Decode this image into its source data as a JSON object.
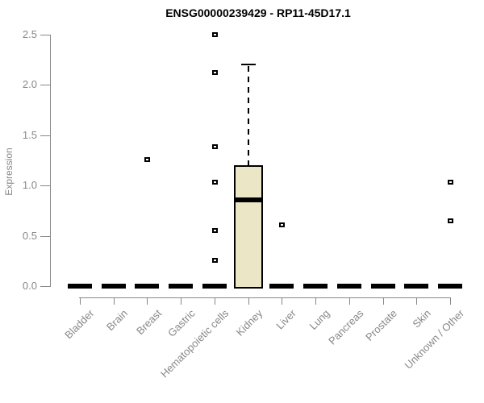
{
  "chart_data": {
    "type": "box",
    "title": "ENSG00000239429 - RP11-45D17.1",
    "ylabel": "Expression",
    "xlabel": "",
    "ylim": [
      0,
      2.5
    ],
    "yticks": [
      "0.0",
      "0.5",
      "1.0",
      "1.5",
      "2.0",
      "2.5"
    ],
    "grid": false,
    "legend": false,
    "categories": [
      "Bladder",
      "Brain",
      "Breast",
      "Gastric",
      "Hematopoietic cells",
      "Kidney",
      "Liver",
      "Lung",
      "Pancreas",
      "Prostate",
      "Skin",
      "Unknown / Other"
    ],
    "series": [
      {
        "category": "Bladder",
        "whisker_low": 0,
        "q1": 0,
        "median": 0,
        "q3": 0,
        "whisker_high": 0,
        "outliers": []
      },
      {
        "category": "Brain",
        "whisker_low": 0,
        "q1": 0,
        "median": 0,
        "q3": 0,
        "whisker_high": 0,
        "outliers": []
      },
      {
        "category": "Breast",
        "whisker_low": 0,
        "q1": 0,
        "median": 0,
        "q3": 0,
        "whisker_high": 0,
        "outliers": [
          1.26
        ]
      },
      {
        "category": "Gastric",
        "whisker_low": 0,
        "q1": 0,
        "median": 0,
        "q3": 0,
        "whisker_high": 0,
        "outliers": []
      },
      {
        "category": "Hematopoietic cells",
        "whisker_low": 0,
        "q1": 0,
        "median": 0,
        "q3": 0,
        "whisker_high": 0,
        "outliers": [
          2.5,
          2.12,
          1.39,
          1.03,
          0.55,
          0.26
        ]
      },
      {
        "category": "Kidney",
        "whisker_low": 0,
        "q1": 0,
        "median": 0.86,
        "q3": 1.2,
        "whisker_high": 2.2,
        "outliers": []
      },
      {
        "category": "Liver",
        "whisker_low": 0,
        "q1": 0,
        "median": 0,
        "q3": 0,
        "whisker_high": 0,
        "outliers": [
          0.61
        ]
      },
      {
        "category": "Lung",
        "whisker_low": 0,
        "q1": 0,
        "median": 0,
        "q3": 0,
        "whisker_high": 0,
        "outliers": []
      },
      {
        "category": "Pancreas",
        "whisker_low": 0,
        "q1": 0,
        "median": 0,
        "q3": 0,
        "whisker_high": 0,
        "outliers": []
      },
      {
        "category": "Prostate",
        "whisker_low": 0,
        "q1": 0,
        "median": 0,
        "q3": 0,
        "whisker_high": 0,
        "outliers": []
      },
      {
        "category": "Skin",
        "whisker_low": 0,
        "q1": 0,
        "median": 0,
        "q3": 0,
        "whisker_high": 0,
        "outliers": []
      },
      {
        "category": "Unknown / Other",
        "whisker_low": 0,
        "q1": 0,
        "median": 0,
        "q3": 0,
        "whisker_high": 0,
        "outliers": [
          1.03,
          0.65
        ]
      }
    ],
    "colors": {
      "box_fill": "#ebe6c5",
      "box_border": "#000000",
      "median": "#000000",
      "axis": "#878787",
      "tick_label": "#878787",
      "title": "#000000",
      "background": "#ffffff"
    }
  }
}
